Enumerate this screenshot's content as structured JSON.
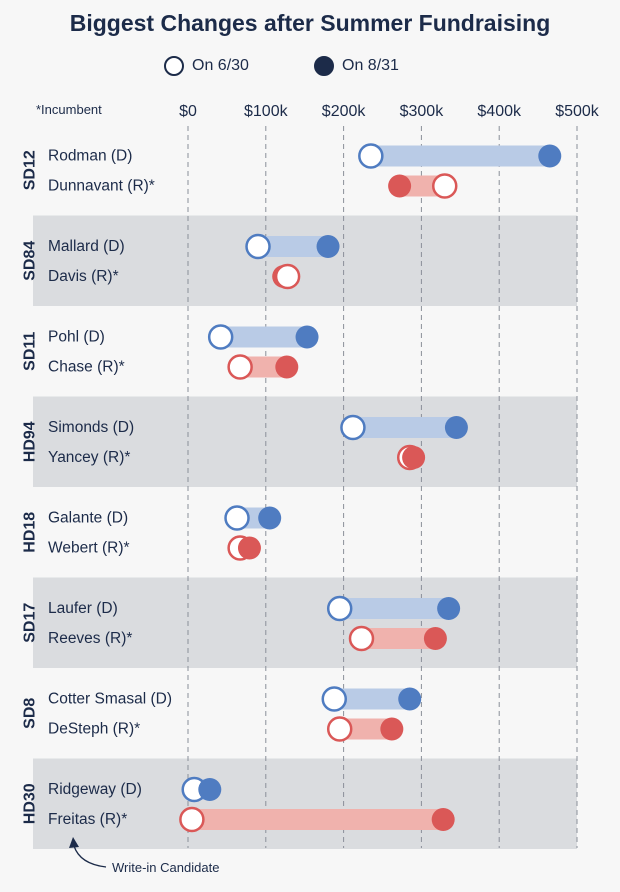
{
  "chart_data": {
    "type": "dumbbell",
    "title": "Biggest Changes after Summer Fundraising",
    "legend": {
      "start": "On 6/30",
      "end": "On 8/31"
    },
    "note": "*Incumbent",
    "annotation": "Write-in Candidate",
    "xlim": [
      0,
      500
    ],
    "x_unit": "thousands of dollars",
    "ticks": [
      "$0",
      "$100k",
      "$200k",
      "$300k",
      "$400k",
      "$500k"
    ],
    "colors": {
      "dem_bar": "#b9cbe6",
      "dem_dot": "#4f7cc1",
      "rep_bar": "#f0b2ad",
      "rep_dot": "#da5857",
      "shade": "#dadcdf",
      "grid": "#8a8f99",
      "ink": "#1c2b49"
    },
    "races": [
      {
        "race": "SD12",
        "candidates": [
          {
            "name": "Rodman (D)",
            "party": "D",
            "start": 235,
            "end": 465
          },
          {
            "name": "Dunnavant (R)*",
            "party": "R",
            "start": 330,
            "end": 272
          }
        ]
      },
      {
        "race": "SD84",
        "candidates": [
          {
            "name": "Mallard (D)",
            "party": "D",
            "start": 90,
            "end": 180
          },
          {
            "name": "Davis (R)*",
            "party": "R",
            "start": 128,
            "end": 123
          }
        ]
      },
      {
        "race": "SD11",
        "candidates": [
          {
            "name": "Pohl (D)",
            "party": "D",
            "start": 42,
            "end": 153
          },
          {
            "name": "Chase (R)*",
            "party": "R",
            "start": 67,
            "end": 127
          }
        ]
      },
      {
        "race": "HD94",
        "candidates": [
          {
            "name": "Simonds (D)",
            "party": "D",
            "start": 212,
            "end": 345
          },
          {
            "name": "Yancey (R)*",
            "party": "R",
            "start": 285,
            "end": 290
          }
        ]
      },
      {
        "race": "HD18",
        "candidates": [
          {
            "name": "Galante (D)",
            "party": "D",
            "start": 63,
            "end": 105
          },
          {
            "name": "Webert (R)*",
            "party": "R",
            "start": 67,
            "end": 79
          }
        ]
      },
      {
        "race": "SD17",
        "candidates": [
          {
            "name": "Laufer (D)",
            "party": "D",
            "start": 195,
            "end": 335
          },
          {
            "name": "Reeves (R)*",
            "party": "R",
            "start": 223,
            "end": 318
          }
        ]
      },
      {
        "race": "SD8",
        "candidates": [
          {
            "name": "Cotter Smasal (D)",
            "party": "D",
            "start": 188,
            "end": 285
          },
          {
            "name": "DeSteph (R)*",
            "party": "R",
            "start": 195,
            "end": 262
          }
        ]
      },
      {
        "race": "HD30",
        "candidates": [
          {
            "name": "Ridgeway (D)",
            "party": "D",
            "start": 8,
            "end": 28
          },
          {
            "name": "Freitas (R)*",
            "party": "R",
            "start": 5,
            "end": 328
          }
        ]
      }
    ]
  }
}
